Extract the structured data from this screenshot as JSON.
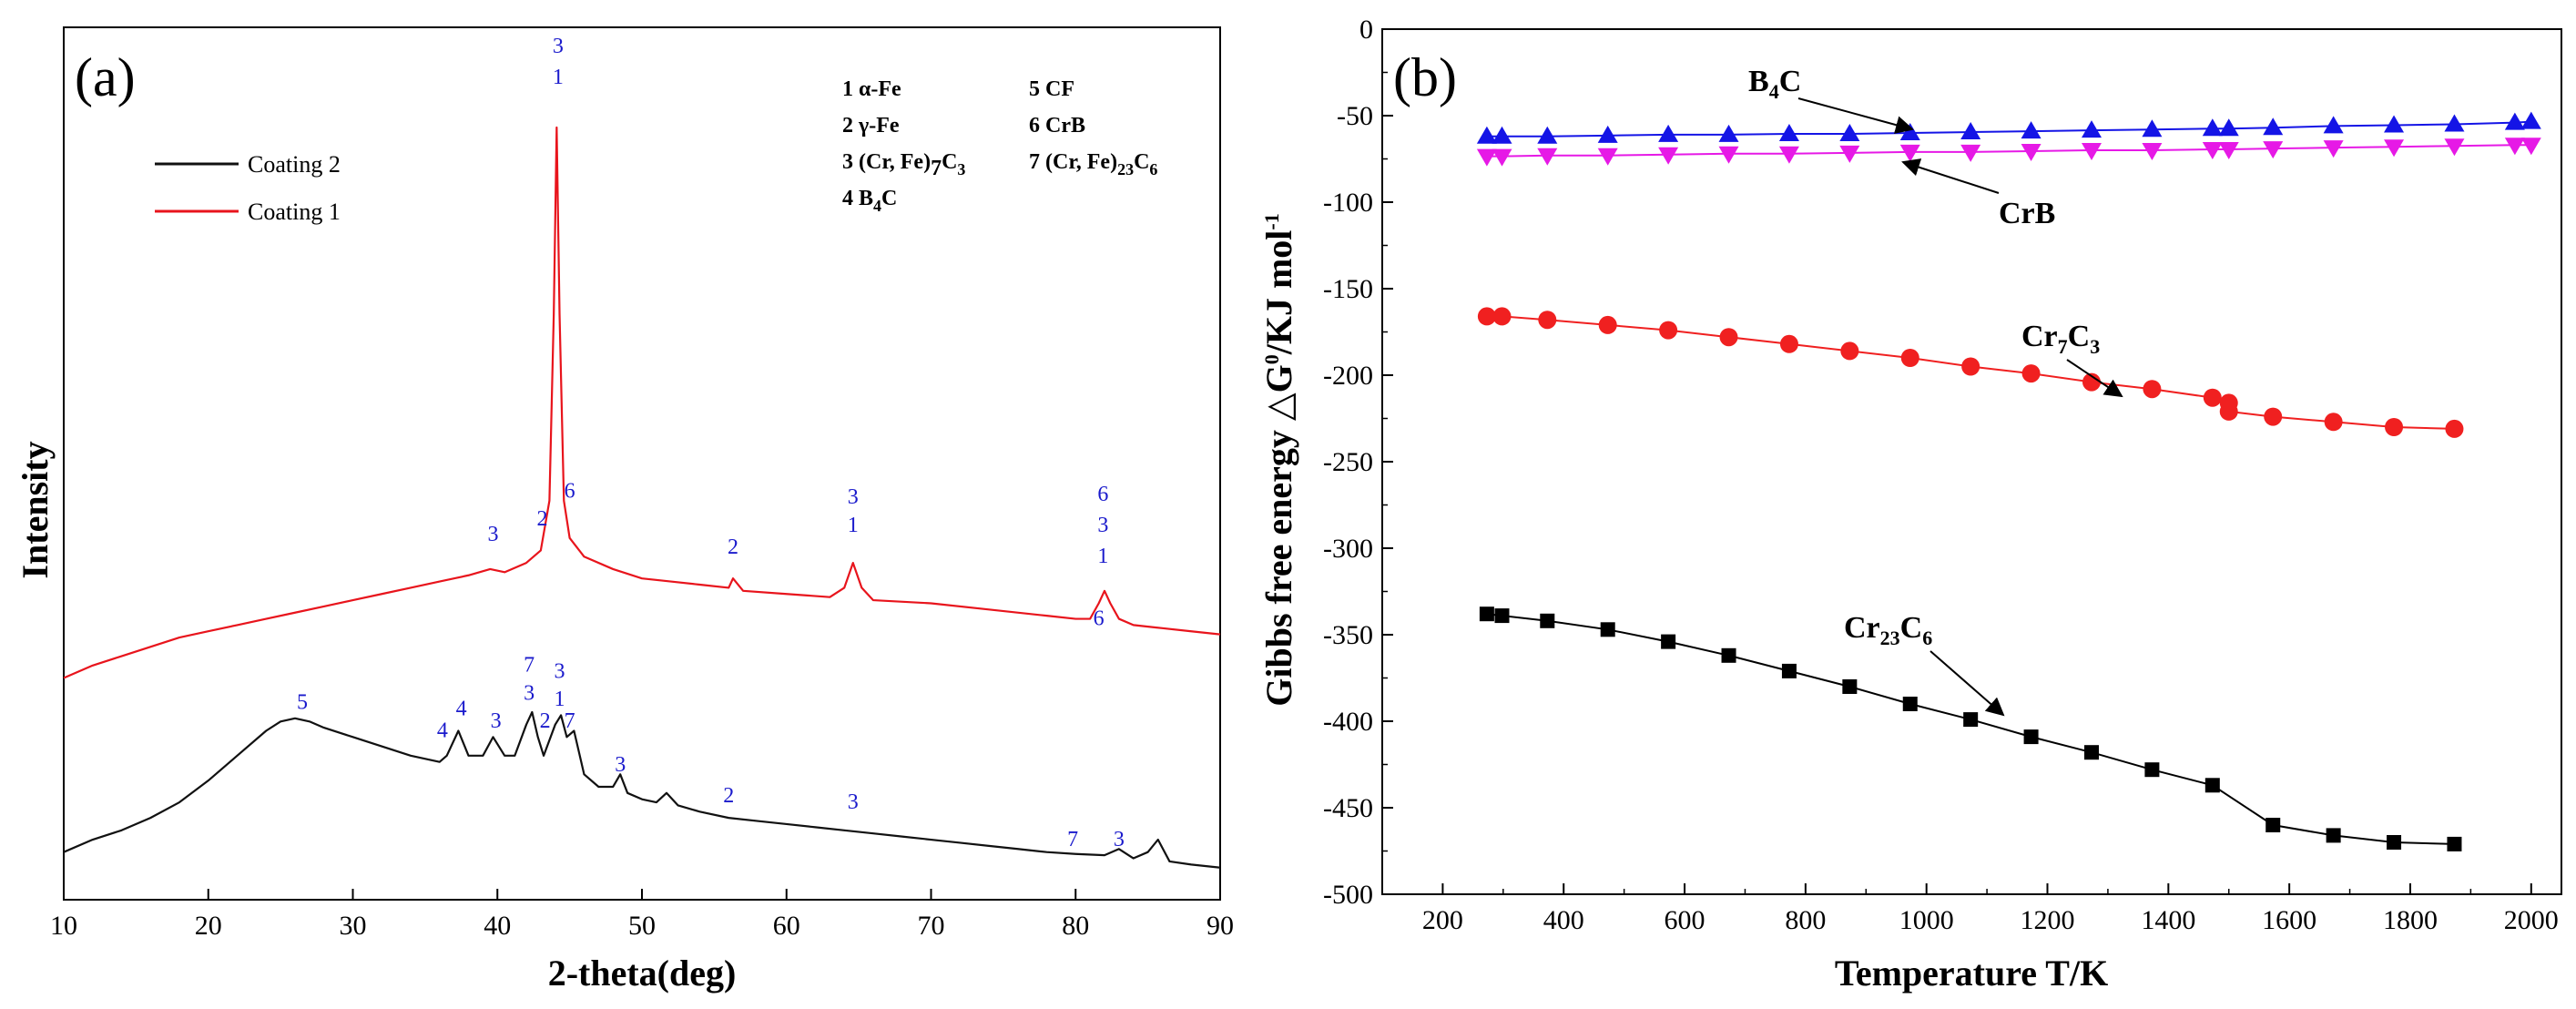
{
  "chart_data": [
    {
      "type": "line",
      "panel": "(a)",
      "xlabel": "2-theta(deg)",
      "ylabel": "Intensity",
      "xlim": [
        10,
        90
      ],
      "xticks": [
        "10",
        "20",
        "30",
        "40",
        "50",
        "60",
        "70",
        "80",
        "90"
      ],
      "legend": [
        "Coating 2",
        "Coating 1"
      ],
      "phase_key": [
        {
          "label": "1 α-Fe"
        },
        {
          "label": "2 γ-Fe"
        },
        {
          "label": "3 (Cr, Fe)",
          "sub": "7",
          "tail": "C",
          "sub2": "3"
        },
        {
          "label": "4 B",
          "sub": "4",
          "tail": "C",
          "sub2": ""
        },
        {
          "label": "5 CF"
        },
        {
          "label": "6 CrB"
        },
        {
          "label": "7 (Cr, Fe)",
          "sub": "23",
          "tail": "C",
          "sub2": "6"
        }
      ],
      "series": [
        {
          "name": "Coating 1",
          "color": "#e8141c",
          "x": [
            10,
            12,
            14,
            16,
            18,
            20,
            22,
            24,
            26,
            28,
            30,
            32,
            34,
            36,
            38,
            39.5,
            40.5,
            42,
            43,
            43.6,
            43.9,
            44.1,
            44.3,
            44.6,
            45,
            46,
            48,
            50,
            52,
            54,
            56,
            56.3,
            57,
            60,
            63,
            64,
            64.6,
            65.2,
            66,
            70,
            74,
            78,
            80,
            81,
            81.6,
            82,
            82.4,
            83,
            84,
            86,
            88,
            90
          ],
          "y": [
            0.115,
            0.135,
            0.15,
            0.165,
            0.18,
            0.19,
            0.2,
            0.21,
            0.22,
            0.23,
            0.24,
            0.25,
            0.26,
            0.27,
            0.28,
            0.29,
            0.285,
            0.3,
            0.32,
            0.4,
            0.7,
            1.0,
            0.7,
            0.4,
            0.34,
            0.31,
            0.29,
            0.275,
            0.27,
            0.265,
            0.26,
            0.275,
            0.255,
            0.25,
            0.245,
            0.26,
            0.3,
            0.26,
            0.24,
            0.235,
            0.225,
            0.215,
            0.21,
            0.21,
            0.235,
            0.255,
            0.235,
            0.21,
            0.2,
            0.195,
            0.19,
            0.185
          ]
        },
        {
          "name": "Coating 2",
          "color": "#111111",
          "x": [
            10,
            12,
            14,
            16,
            18,
            20,
            22,
            24,
            25,
            26,
            27,
            28,
            30,
            32,
            34,
            36,
            36.5,
            37.3,
            38,
            39,
            39.7,
            40.5,
            41.2,
            42,
            42.4,
            42.8,
            43.2,
            44,
            44.4,
            44.8,
            45.3,
            46,
            47,
            48,
            48.5,
            49,
            50,
            51,
            51.7,
            52.5,
            54,
            56,
            58,
            60,
            62,
            64,
            66,
            68,
            70,
            72,
            74,
            76,
            78,
            80,
            82,
            83,
            84,
            85,
            85.7,
            86.5,
            88,
            90
          ],
          "y": [
            -0.165,
            -0.145,
            -0.13,
            -0.11,
            -0.085,
            -0.05,
            -0.01,
            0.03,
            0.045,
            0.05,
            0.045,
            0.035,
            0.02,
            0.005,
            -0.01,
            -0.02,
            -0.01,
            0.03,
            -0.01,
            -0.01,
            0.02,
            -0.01,
            -0.01,
            0.04,
            0.06,
            0.02,
            -0.01,
            0.04,
            0.055,
            0.02,
            0.03,
            -0.04,
            -0.06,
            -0.06,
            -0.04,
            -0.07,
            -0.08,
            -0.085,
            -0.07,
            -0.09,
            -0.1,
            -0.11,
            -0.115,
            -0.12,
            -0.125,
            -0.13,
            -0.135,
            -0.14,
            -0.145,
            -0.15,
            -0.155,
            -0.16,
            -0.165,
            -0.168,
            -0.17,
            -0.16,
            -0.175,
            -0.165,
            -0.145,
            -0.18,
            -0.185,
            -0.19
          ]
        }
      ],
      "peak_labels": [
        {
          "x": 44.2,
          "y": 1.07,
          "text": "1"
        },
        {
          "x": 44.2,
          "y": 1.12,
          "text": "3"
        },
        {
          "x": 39.7,
          "y": 0.335,
          "text": "3"
        },
        {
          "x": 43.1,
          "y": 0.36,
          "text": "2"
        },
        {
          "x": 45.0,
          "y": 0.405,
          "text": "6"
        },
        {
          "x": 56.3,
          "y": 0.315,
          "text": "2"
        },
        {
          "x": 64.6,
          "y": 0.35,
          "text": "1"
        },
        {
          "x": 64.6,
          "y": 0.395,
          "text": "3"
        },
        {
          "x": 81.9,
          "y": 0.3,
          "text": "1"
        },
        {
          "x": 81.9,
          "y": 0.35,
          "text": "3"
        },
        {
          "x": 81.9,
          "y": 0.4,
          "text": "6"
        },
        {
          "x": 81.6,
          "y": 0.2,
          "text": "6"
        },
        {
          "x": 26.5,
          "y": 0.065,
          "text": "5"
        },
        {
          "x": 36.2,
          "y": 0.02,
          "text": "4"
        },
        {
          "x": 37.5,
          "y": 0.055,
          "text": "4"
        },
        {
          "x": 39.9,
          "y": 0.035,
          "text": "3"
        },
        {
          "x": 42.2,
          "y": 0.125,
          "text": "7"
        },
        {
          "x": 42.2,
          "y": 0.08,
          "text": "3"
        },
        {
          "x": 43.3,
          "y": 0.035,
          "text": "2"
        },
        {
          "x": 44.3,
          "y": 0.115,
          "text": "3"
        },
        {
          "x": 44.3,
          "y": 0.07,
          "text": "1"
        },
        {
          "x": 45.0,
          "y": 0.035,
          "text": "7"
        },
        {
          "x": 48.5,
          "y": -0.035,
          "text": "3"
        },
        {
          "x": 56.0,
          "y": -0.085,
          "text": "2"
        },
        {
          "x": 64.6,
          "y": -0.095,
          "text": "3"
        },
        {
          "x": 79.8,
          "y": -0.155,
          "text": "7"
        },
        {
          "x": 83.0,
          "y": -0.155,
          "text": "3"
        }
      ]
    },
    {
      "type": "line",
      "panel": "(b)",
      "xlabel": "Temperature T/K",
      "ylabel": "Gibbs free energy △G",
      "ylabel_sup": "0",
      "ylabel_tail": "/KJ mol",
      "ylabel_sup2": "-1",
      "xlim": [
        100,
        2050
      ],
      "ylim": [
        -500,
        0
      ],
      "xticks": [
        "200",
        "400",
        "600",
        "800",
        "1000",
        "1200",
        "1400",
        "1600",
        "1800",
        "2000"
      ],
      "yticks": [
        "0",
        "-50",
        "-100",
        "-150",
        "-200",
        "-250",
        "-300",
        "-350",
        "-400",
        "-450",
        "-500"
      ],
      "series": [
        {
          "name": "B4C",
          "label_main": "B",
          "label_sub": "4",
          "label_tail": "C",
          "label_sub2": "",
          "color": "#1414e6",
          "marker": "triangle-up",
          "x": [
            273,
            298,
            373,
            473,
            573,
            673,
            773,
            873,
            973,
            1073,
            1173,
            1273,
            1373,
            1473,
            1500,
            1573,
            1673,
            1773,
            1873,
            1973,
            2000
          ],
          "y": [
            -62,
            -62,
            -62,
            -61.5,
            -61,
            -61,
            -60.5,
            -60.5,
            -60,
            -59.5,
            -59,
            -58.5,
            -58,
            -57.5,
            -57.5,
            -57,
            -56,
            -55.5,
            -55,
            -54,
            -53.5
          ]
        },
        {
          "name": "CrB",
          "label_main": "CrB",
          "label_sub": "",
          "label_tail": "",
          "label_sub2": "",
          "color": "#e619e6",
          "marker": "triangle-down",
          "x": [
            273,
            298,
            373,
            473,
            573,
            673,
            773,
            873,
            973,
            1073,
            1173,
            1273,
            1373,
            1473,
            1500,
            1573,
            1673,
            1773,
            1873,
            1973,
            2000
          ],
          "y": [
            -73.5,
            -73.5,
            -73,
            -73,
            -72.5,
            -72,
            -72,
            -71.5,
            -71,
            -71,
            -70.5,
            -70,
            -70,
            -69.5,
            -69.5,
            -69,
            -68.5,
            -68,
            -67.5,
            -67,
            -67
          ]
        },
        {
          "name": "Cr7C3",
          "label_main": "Cr",
          "label_sub": "7",
          "label_tail": "C",
          "label_sub2": "3",
          "color": "#f02020",
          "marker": "circle",
          "x": [
            273,
            298,
            373,
            473,
            573,
            673,
            773,
            873,
            973,
            1073,
            1173,
            1273,
            1373,
            1473,
            1500,
            1500,
            1573,
            1673,
            1773,
            1873
          ],
          "y": [
            -166,
            -166,
            -168,
            -171,
            -174,
            -178,
            -182,
            -186,
            -190,
            -195,
            -199,
            -204,
            -208,
            -213,
            -216,
            -221,
            -224,
            -227,
            -230,
            -231
          ]
        },
        {
          "name": "Cr23C6",
          "label_main": "Cr",
          "label_sub": "23",
          "label_tail": "C",
          "label_sub2": "6",
          "color": "#000000",
          "marker": "square",
          "x": [
            273,
            298,
            373,
            473,
            573,
            673,
            773,
            873,
            973,
            1073,
            1173,
            1273,
            1373,
            1473,
            1573,
            1673,
            1773,
            1873
          ],
          "y": [
            -338,
            -339,
            -342,
            -347,
            -354,
            -362,
            -371,
            -380,
            -390,
            -399,
            -409,
            -418,
            -428,
            -437,
            -460,
            -466,
            -470,
            -471
          ]
        }
      ]
    }
  ]
}
